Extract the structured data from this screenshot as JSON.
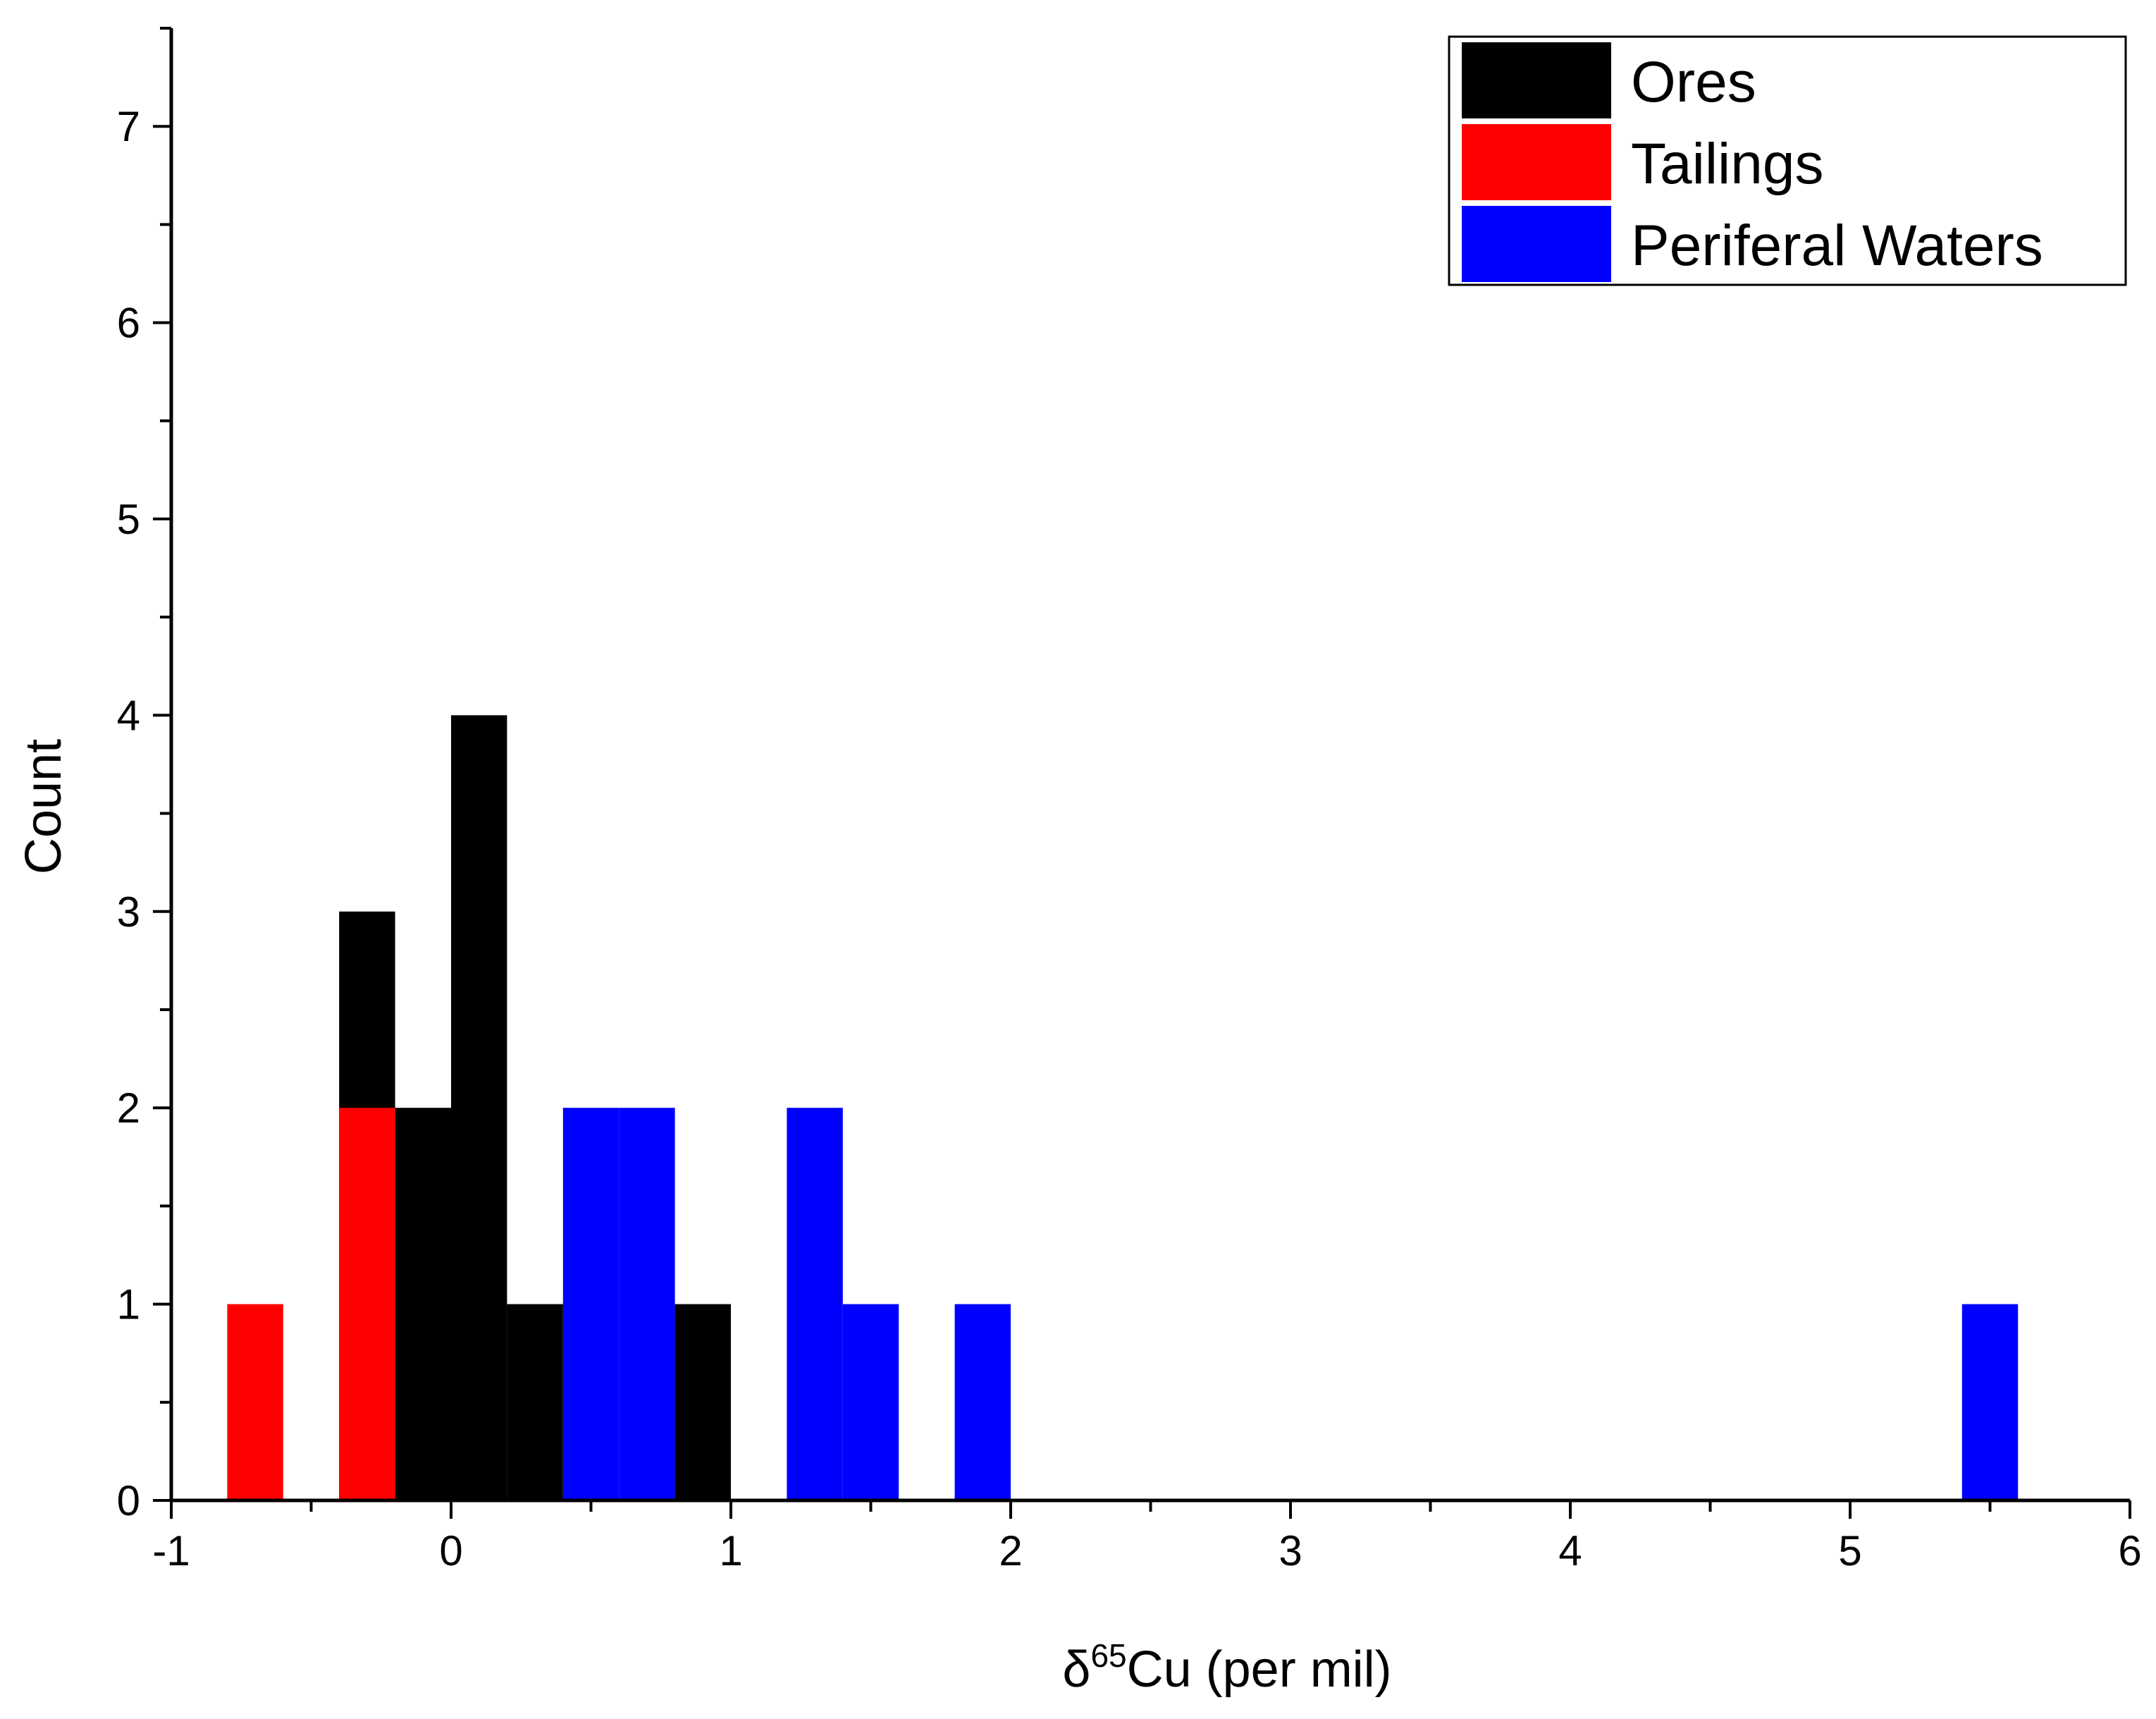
{
  "chart_data": {
    "type": "bar",
    "subtype": "histogram",
    "title": "",
    "xlabel": {
      "prefix": "δ",
      "superscript": "65",
      "suffix": "Cu (per mil)"
    },
    "ylabel": "Count",
    "xlim": [
      -1,
      6
    ],
    "ylim": [
      0,
      7.5
    ],
    "bin_width": 0.2,
    "x_ticks": [
      "-1",
      "0",
      "1",
      "2",
      "3",
      "4",
      "5",
      "6"
    ],
    "y_ticks": [
      "0",
      "1",
      "2",
      "3",
      "4",
      "5",
      "6",
      "7"
    ],
    "legend_position": "top-right",
    "series": [
      {
        "name": "Ores",
        "color": "#000000",
        "bins": [
          {
            "start": -0.4,
            "end": -0.2,
            "count": 3
          },
          {
            "start": -0.2,
            "end": 0.0,
            "count": 2
          },
          {
            "start": 0.0,
            "end": 0.2,
            "count": 4
          },
          {
            "start": 0.2,
            "end": 0.4,
            "count": 1
          },
          {
            "start": 0.8,
            "end": 1.0,
            "count": 1
          }
        ]
      },
      {
        "name": "Tailings",
        "color": "#ff0000",
        "bins": [
          {
            "start": -0.8,
            "end": -0.6,
            "count": 1
          },
          {
            "start": -0.4,
            "end": -0.2,
            "count": 2
          }
        ]
      },
      {
        "name": "Periferal Waters",
        "color": "#0000ff",
        "bins": [
          {
            "start": 0.4,
            "end": 0.6,
            "count": 2
          },
          {
            "start": 0.6,
            "end": 0.8,
            "count": 2
          },
          {
            "start": 1.2,
            "end": 1.4,
            "count": 2
          },
          {
            "start": 1.4,
            "end": 1.6,
            "count": 1
          },
          {
            "start": 1.8,
            "end": 2.0,
            "count": 1
          },
          {
            "start": 5.4,
            "end": 5.6,
            "count": 1
          }
        ]
      }
    ]
  }
}
